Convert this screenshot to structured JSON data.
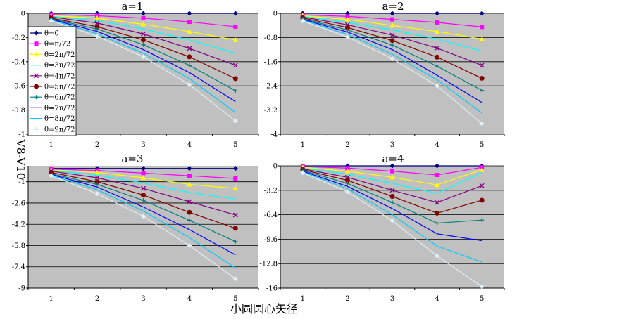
{
  "figure": {
    "ylabel": "V8-V10",
    "xlabel": "小圆圆心矢径"
  },
  "legend": [
    "θ=0",
    "θ=π/72",
    "θ=2π/72",
    "θ=3π/72",
    "θ=4π/72",
    "θ=5π/72",
    "θ=6π/72",
    "θ=7π/72",
    "θ=8π/72",
    "θ=9π/72"
  ],
  "series_styles": [
    {
      "color": "#000080",
      "marker": "diamond"
    },
    {
      "color": "#ff00ff",
      "marker": "square"
    },
    {
      "color": "#ffff00",
      "marker": "triangle"
    },
    {
      "color": "#00ffff",
      "marker": "none"
    },
    {
      "color": "#800080",
      "marker": "x"
    },
    {
      "color": "#800000",
      "marker": "circle"
    },
    {
      "color": "#008080",
      "marker": "plus"
    },
    {
      "color": "#0000ff",
      "marker": "none"
    },
    {
      "color": "#00ccff",
      "marker": "none"
    },
    {
      "color": "#e0f0f8",
      "marker": "diamond"
    }
  ],
  "chart_data": [
    {
      "type": "line",
      "title": "a=1",
      "x": [
        1,
        2,
        3,
        4,
        5
      ],
      "ylim": [
        -1,
        0
      ],
      "yticks": [
        0,
        -0.2,
        -0.4,
        -0.6,
        -0.8,
        -1
      ],
      "ytick_labels": [
        "0",
        "-0.2",
        "-0.4",
        "-0.6",
        "-0.8",
        "-1"
      ],
      "series": [
        {
          "name": "θ=0",
          "values": [
            0,
            0,
            0,
            0,
            0
          ]
        },
        {
          "name": "θ=π/72",
          "values": [
            -0.01,
            -0.02,
            -0.04,
            -0.07,
            -0.11
          ]
        },
        {
          "name": "θ=2π/72",
          "values": [
            -0.02,
            -0.04,
            -0.09,
            -0.15,
            -0.22
          ]
        },
        {
          "name": "θ=3π/72",
          "values": [
            -0.025,
            -0.06,
            -0.13,
            -0.22,
            -0.33
          ]
        },
        {
          "name": "θ=4π/72",
          "values": [
            -0.03,
            -0.08,
            -0.17,
            -0.29,
            -0.43
          ]
        },
        {
          "name": "θ=5π/72",
          "values": [
            -0.04,
            -0.11,
            -0.22,
            -0.36,
            -0.54
          ]
        },
        {
          "name": "θ=6π/72",
          "values": [
            -0.045,
            -0.13,
            -0.26,
            -0.43,
            -0.64
          ]
        },
        {
          "name": "θ=7π/72",
          "values": [
            -0.05,
            -0.15,
            -0.3,
            -0.49,
            -0.73
          ]
        },
        {
          "name": "θ=8π/72",
          "values": [
            -0.055,
            -0.17,
            -0.33,
            -0.54,
            -0.82
          ]
        },
        {
          "name": "θ=9π/72",
          "values": [
            -0.06,
            -0.19,
            -0.36,
            -0.59,
            -0.89
          ]
        }
      ]
    },
    {
      "type": "line",
      "title": "a=2",
      "x": [
        1,
        2,
        3,
        4,
        5
      ],
      "ylim": [
        -4,
        0
      ],
      "yticks": [
        0,
        -0.8,
        -1.6,
        -2.4,
        -3.2,
        -4
      ],
      "ytick_labels": [
        "0",
        "-0.8",
        "-1.6",
        "-2.4",
        "-3.2",
        "-4"
      ],
      "series": [
        {
          "name": "θ=0",
          "values": [
            0,
            0,
            0,
            0,
            0
          ]
        },
        {
          "name": "θ=π/72",
          "values": [
            -0.05,
            -0.1,
            -0.2,
            -0.3,
            -0.45
          ]
        },
        {
          "name": "θ=2π/72",
          "values": [
            -0.08,
            -0.2,
            -0.4,
            -0.6,
            -0.85
          ]
        },
        {
          "name": "θ=3π/72",
          "values": [
            -0.1,
            -0.3,
            -0.55,
            -0.85,
            -1.25
          ]
        },
        {
          "name": "θ=4π/72",
          "values": [
            -0.12,
            -0.38,
            -0.72,
            -1.15,
            -1.72
          ]
        },
        {
          "name": "θ=5π/72",
          "values": [
            -0.15,
            -0.47,
            -0.9,
            -1.45,
            -2.15
          ]
        },
        {
          "name": "θ=6π/72",
          "values": [
            -0.18,
            -0.55,
            -1.05,
            -1.75,
            -2.55
          ]
        },
        {
          "name": "θ=7π/72",
          "values": [
            -0.2,
            -0.62,
            -1.2,
            -2.05,
            -2.95
          ]
        },
        {
          "name": "θ=8π/72",
          "values": [
            -0.22,
            -0.7,
            -1.35,
            -2.2,
            -3.3
          ]
        },
        {
          "name": "θ=9π/72",
          "values": [
            -0.25,
            -0.78,
            -1.5,
            -2.4,
            -3.65
          ]
        }
      ]
    },
    {
      "type": "line",
      "title": "a=3",
      "x": [
        1,
        2,
        3,
        4,
        5
      ],
      "ylim": [
        -9,
        0.2
      ],
      "yticks": [
        -1,
        -2.6,
        -4.2,
        -5.8,
        -7.4,
        -9
      ],
      "ytick_labels": [
        "-1",
        "-2.6",
        "-4.2",
        "-5.8",
        "-7.4",
        "-9"
      ],
      "series": [
        {
          "name": "θ=0",
          "values": [
            0,
            0,
            0,
            0,
            0
          ]
        },
        {
          "name": "θ=π/72",
          "values": [
            -0.05,
            -0.15,
            -0.35,
            -0.55,
            -0.75
          ]
        },
        {
          "name": "θ=2π/72",
          "values": [
            -0.1,
            -0.3,
            -0.7,
            -1.2,
            -1.5
          ]
        },
        {
          "name": "θ=3π/72",
          "values": [
            -0.15,
            -0.5,
            -1.1,
            -1.8,
            -2.3
          ]
        },
        {
          "name": "θ=4π/72",
          "values": [
            -0.2,
            -0.7,
            -1.5,
            -2.5,
            -3.5
          ]
        },
        {
          "name": "θ=5π/72",
          "values": [
            -0.3,
            -1.0,
            -2.0,
            -3.3,
            -4.5
          ]
        },
        {
          "name": "θ=6π/72",
          "values": [
            -0.4,
            -1.2,
            -2.4,
            -3.9,
            -5.5
          ]
        },
        {
          "name": "θ=7π/72",
          "values": [
            -0.45,
            -1.4,
            -2.9,
            -4.6,
            -6.5
          ]
        },
        {
          "name": "θ=8π/72",
          "values": [
            -0.5,
            -1.6,
            -3.2,
            -5.2,
            -7.5
          ]
        },
        {
          "name": "θ=9π/72",
          "values": [
            -0.55,
            -1.9,
            -3.6,
            -5.8,
            -8.3
          ]
        }
      ]
    },
    {
      "type": "line",
      "title": "a=4",
      "x": [
        1,
        2,
        3,
        4,
        5
      ],
      "ylim": [
        -16,
        0
      ],
      "yticks": [
        0,
        -3.2,
        -6.4,
        -9.6,
        -12.8,
        -16
      ],
      "ytick_labels": [
        "0",
        "-3.2",
        "-6.4",
        "-9.6",
        "-12.8",
        "-16"
      ],
      "series": [
        {
          "name": "θ=0",
          "values": [
            0,
            0,
            0,
            0,
            0
          ]
        },
        {
          "name": "θ=π/72",
          "values": [
            -0.1,
            -0.3,
            -0.7,
            -1.2,
            -0.2
          ]
        },
        {
          "name": "θ=2π/72",
          "values": [
            -0.2,
            -0.7,
            -1.5,
            -2.5,
            -0.5
          ]
        },
        {
          "name": "θ=3π/72",
          "values": [
            -0.3,
            -1.1,
            -2.3,
            -3.6,
            -0.9
          ]
        },
        {
          "name": "θ=4π/72",
          "values": [
            -0.4,
            -1.5,
            -3.2,
            -4.8,
            -2.6
          ]
        },
        {
          "name": "θ=5π/72",
          "values": [
            -0.5,
            -1.9,
            -4.0,
            -6.2,
            -4.5
          ]
        },
        {
          "name": "θ=6π/72",
          "values": [
            -0.6,
            -2.3,
            -4.8,
            -7.5,
            -7.1
          ]
        },
        {
          "name": "θ=7π/72",
          "values": [
            -0.7,
            -2.7,
            -5.6,
            -8.9,
            -9.8
          ]
        },
        {
          "name": "θ=8π/72",
          "values": [
            -0.8,
            -3.0,
            -6.4,
            -10.5,
            -12.6
          ]
        },
        {
          "name": "θ=9π/72",
          "values": [
            -0.9,
            -3.4,
            -7.2,
            -11.8,
            -15.8
          ]
        }
      ]
    }
  ]
}
